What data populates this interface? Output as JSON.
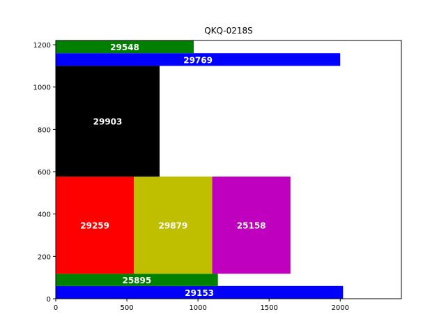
{
  "chart_data": {
    "type": "bar",
    "title": "QKQ-0218S",
    "xlabel": "",
    "ylabel": "",
    "xlim": [
      0,
      2430
    ],
    "ylim": [
      0,
      1220
    ],
    "x_ticks": [
      0,
      500,
      1000,
      1500,
      2000
    ],
    "y_ticks": [
      0,
      200,
      400,
      600,
      800,
      1000,
      1200
    ],
    "grid": false,
    "bars": [
      {
        "label": "29153",
        "x0": 0,
        "x1": 2020,
        "y0": 0,
        "y1": 60,
        "color": "#0000ff"
      },
      {
        "label": "25895",
        "x0": 0,
        "x1": 1140,
        "y0": 60,
        "y1": 118,
        "color": "#008000"
      },
      {
        "label": "29259",
        "x0": 0,
        "x1": 550,
        "y0": 118,
        "y1": 577,
        "color": "#ff0000"
      },
      {
        "label": "29879",
        "x0": 550,
        "x1": 1100,
        "y0": 118,
        "y1": 577,
        "color": "#bfbf00"
      },
      {
        "label": "25158",
        "x0": 1100,
        "x1": 1650,
        "y0": 118,
        "y1": 577,
        "color": "#bf00bf"
      },
      {
        "label": "29903",
        "x0": 0,
        "x1": 730,
        "y0": 577,
        "y1": 1100,
        "color": "#000000"
      },
      {
        "label": "29769",
        "x0": 0,
        "x1": 2000,
        "y0": 1100,
        "y1": 1160,
        "color": "#0000ff"
      },
      {
        "label": "29548",
        "x0": 0,
        "x1": 970,
        "y0": 1160,
        "y1": 1220,
        "color": "#008000"
      }
    ]
  }
}
